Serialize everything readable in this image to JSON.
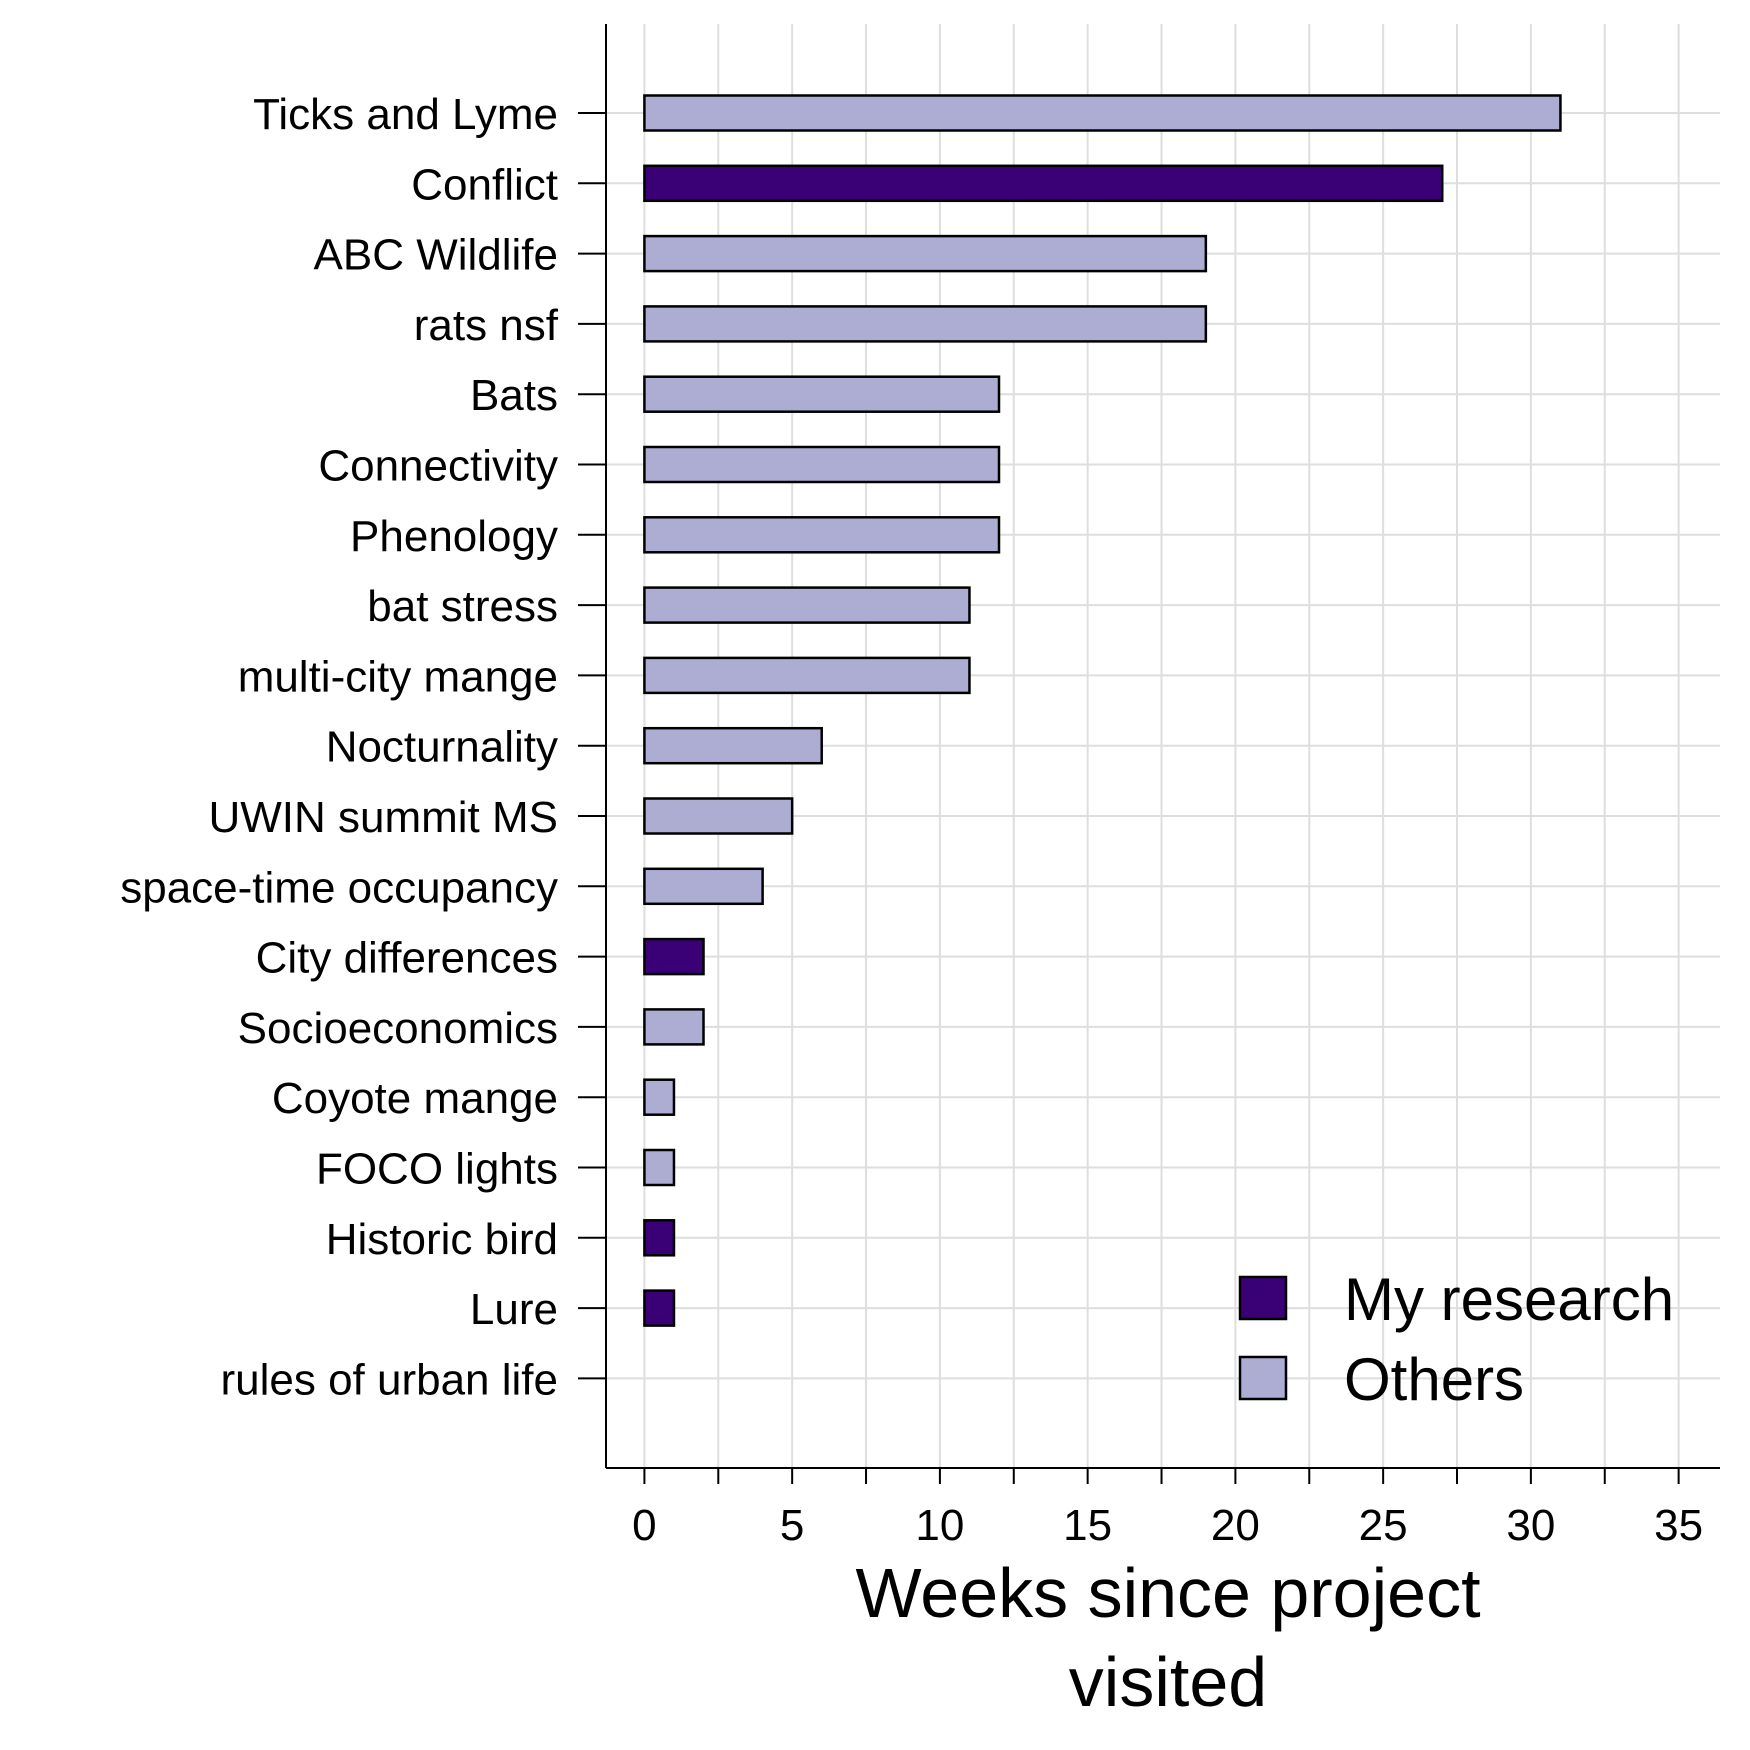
{
  "chart_data": {
    "type": "bar",
    "orientation": "horizontal",
    "categories": [
      "Ticks and Lyme",
      "Conflict",
      "ABC Wildlife",
      "rats nsf",
      "Bats",
      "Connectivity",
      "Phenology",
      "bat stress",
      "multi-city mange",
      "Nocturnality",
      "UWIN summit MS",
      "space-time occupancy",
      "City differences",
      "Socioeconomics",
      "Coyote mange",
      "FOCO lights",
      "Historic bird",
      "Lure",
      "rules of urban life"
    ],
    "values": [
      31,
      27,
      19,
      19,
      12,
      12,
      12,
      11,
      11,
      6,
      5,
      4,
      2,
      2,
      1,
      1,
      1,
      1,
      0
    ],
    "groups": [
      "Others",
      "My research",
      "Others",
      "Others",
      "Others",
      "Others",
      "Others",
      "Others",
      "Others",
      "Others",
      "Others",
      "Others",
      "My research",
      "Others",
      "Others",
      "Others",
      "My research",
      "My research",
      "Others"
    ],
    "legend": [
      {
        "name": "My research",
        "color": "#3a0075"
      },
      {
        "name": "Others",
        "color": "#adadd4"
      }
    ],
    "legend_position": "bottom-right",
    "xlabel_lines": [
      "Weeks since project",
      "visited"
    ],
    "ylabel": "",
    "xlim": [
      -1.3,
      36.4
    ],
    "x_ticks": [
      0,
      5,
      10,
      15,
      20,
      25,
      30,
      35
    ],
    "x_minor_ticks": [
      2.5,
      7.5,
      12.5,
      17.5,
      22.5,
      27.5,
      32.5
    ],
    "grid": true
  }
}
